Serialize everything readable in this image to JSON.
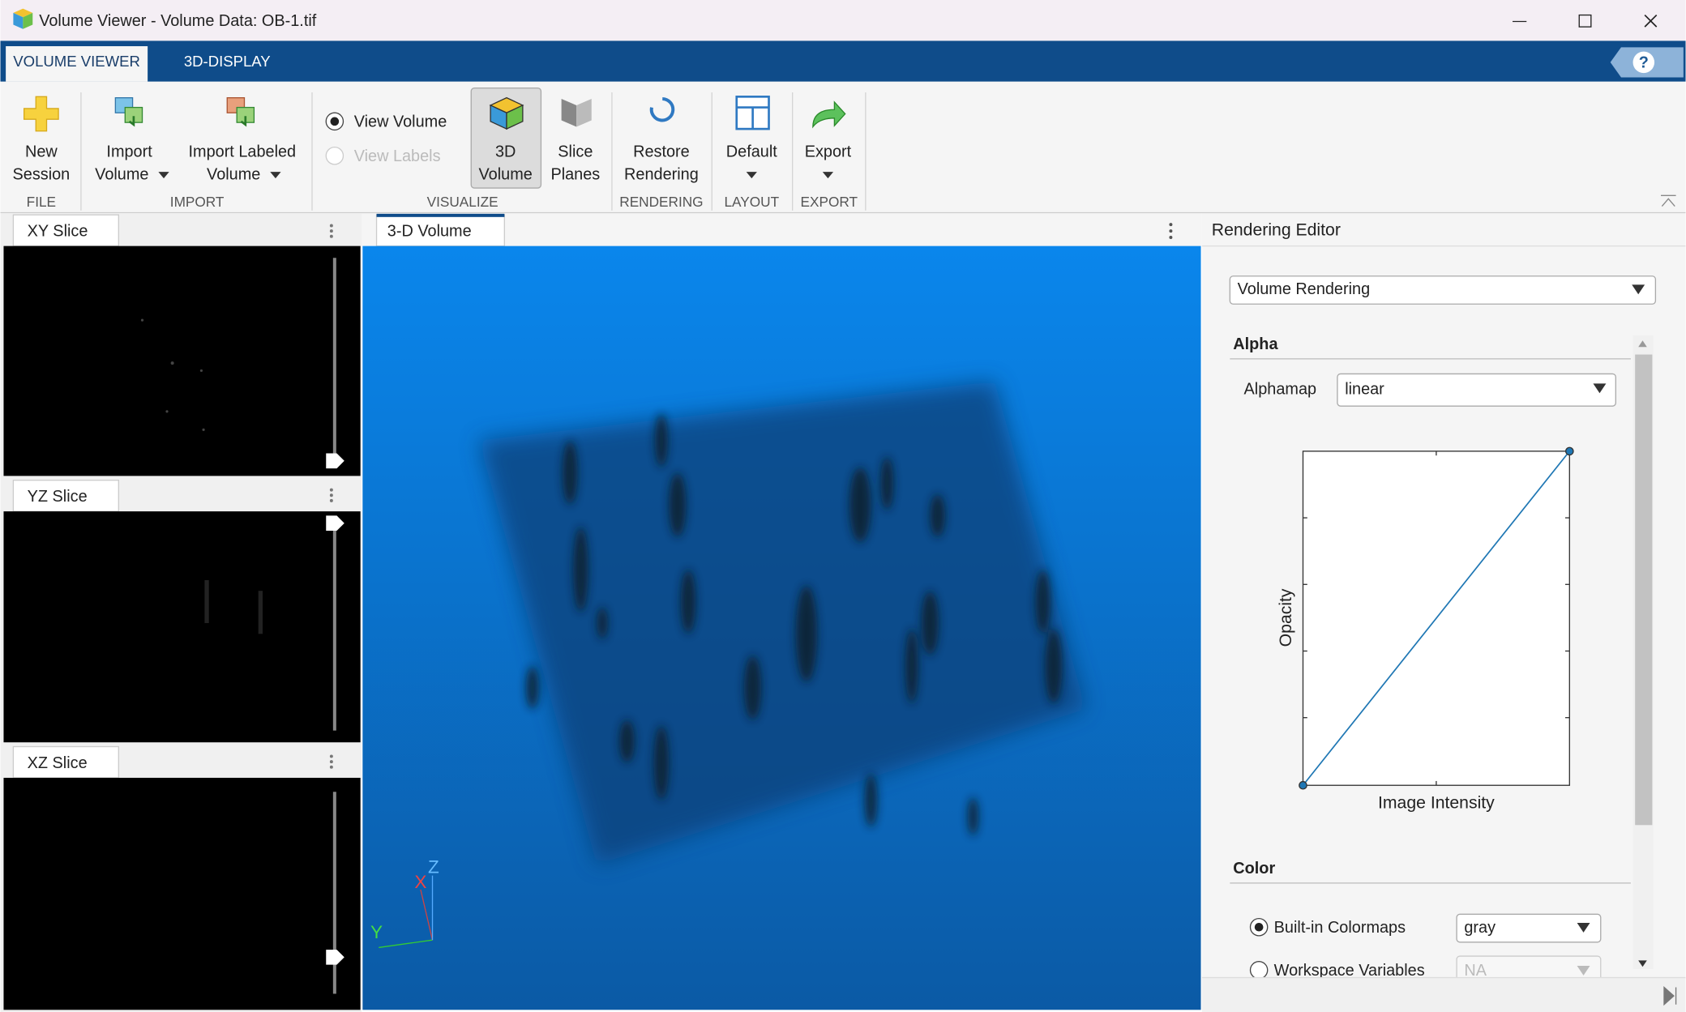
{
  "window": {
    "title": "Volume Viewer - Volume Data: OB-1.tif"
  },
  "tabs": [
    "VOLUME VIEWER",
    "3D-DISPLAY"
  ],
  "help": "?",
  "ribbon": {
    "groups": [
      {
        "label": "FILE",
        "buttons": [
          {
            "lines": [
              "New",
              "Session"
            ]
          }
        ]
      },
      {
        "label": "IMPORT",
        "buttons": [
          {
            "lines": [
              "Import",
              "Volume"
            ]
          },
          {
            "lines": [
              "Import Labeled",
              "Volume"
            ]
          }
        ]
      },
      {
        "label": "VISUALIZE",
        "options": [
          "View Volume",
          "View Labels"
        ],
        "buttons": [
          {
            "lines": [
              "3D",
              "Volume"
            ]
          },
          {
            "lines": [
              "Slice",
              "Planes"
            ]
          }
        ]
      },
      {
        "label": "RENDERING",
        "buttons": [
          {
            "lines": [
              "Restore",
              "Rendering"
            ]
          }
        ]
      },
      {
        "label": "LAYOUT",
        "buttons": [
          {
            "lines": [
              "Default"
            ]
          }
        ]
      },
      {
        "label": "EXPORT",
        "buttons": [
          {
            "lines": [
              "Export"
            ]
          }
        ]
      }
    ]
  },
  "panels": {
    "slices": [
      "XY Slice",
      "YZ Slice",
      "XZ Slice"
    ],
    "volume": "3-D Volume",
    "axes": [
      "X",
      "Y",
      "Z"
    ]
  },
  "editor": {
    "title": "Rendering Editor",
    "mode": "Volume Rendering",
    "alpha": {
      "heading": "Alpha",
      "alphamap_label": "Alphamap",
      "alphamap": "linear",
      "ylabel": "Opacity",
      "xlabel": "Image Intensity"
    },
    "color": {
      "heading": "Color",
      "builtin": "Built-in Colormaps",
      "colormap": "gray",
      "workspace": "Workspace Variables",
      "workspace_value": "NA"
    }
  }
}
